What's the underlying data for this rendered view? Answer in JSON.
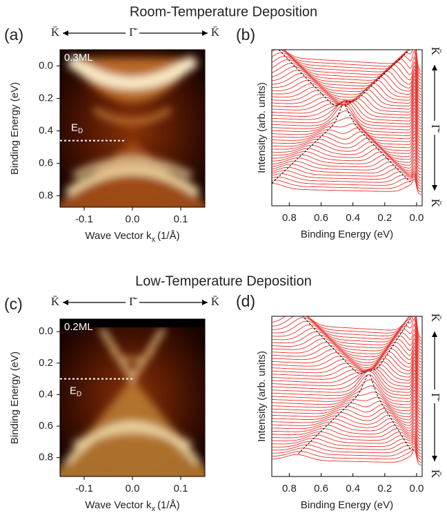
{
  "headings": [
    "Room-Temperature Deposition",
    "Low-Temperature Deposition"
  ],
  "chart_data": [
    {
      "type": "heatmap",
      "panel": "(a)",
      "annotation": "0.3ML",
      "k_path": [
        "K̄",
        "Γ̄",
        "K̄"
      ],
      "marker": {
        "label": "E",
        "label_sub": "D",
        "value": 0.46
      },
      "xlabel": "Wave Vector k",
      "xlabel_sub": "x",
      "xlabel_unit": "(1/Å)",
      "ylabel": "Binding Energy (eV)",
      "xlim": [
        -0.15,
        0.15
      ],
      "ylim": [
        -0.1,
        0.87
      ],
      "xticks": [
        -0.1,
        {
          "value": 0,
          "label": "0.0"
        },
        0.1
      ],
      "yticks": [
        {
          "value": 0,
          "label": "0.0"
        },
        0.2,
        0.4,
        0.6,
        0.8
      ]
    },
    {
      "type": "edc",
      "panel": "(b)",
      "k_path": [
        "K̄",
        "Γ̄",
        "K̄"
      ],
      "xlabel": "Binding Energy (eV)",
      "ylabel": "Intensity (arb. units)",
      "color": "#e8302a",
      "xlim": [
        0.91,
        -0.035
      ],
      "xticks": [
        0.8,
        0.6,
        0.4,
        0.2,
        {
          "value": 0,
          "label": "0.0"
        }
      ]
    },
    {
      "type": "heatmap",
      "panel": "(c)",
      "annotation": "0.2ML",
      "k_path": [
        "K̄",
        "Γ̄",
        "K̄"
      ],
      "marker": {
        "label": "E",
        "label_sub": "D",
        "value": 0.3
      },
      "xlabel": "Wave Vector k",
      "xlabel_sub": "x",
      "xlabel_unit": "(1/Å)",
      "ylabel": "Binding Energy (eV)",
      "xlim": [
        -0.15,
        0.15
      ],
      "ylim": [
        -0.08,
        0.92
      ],
      "xticks": [
        -0.1,
        {
          "value": 0,
          "label": "0.0"
        },
        0.1
      ],
      "yticks": [
        {
          "value": 0,
          "label": "0.0"
        },
        0.2,
        0.4,
        0.6,
        0.8
      ]
    },
    {
      "type": "edc",
      "panel": "(d)",
      "k_path": [
        "K̄",
        "Γ̄",
        "K̄"
      ],
      "xlabel": "Binding Energy (eV)",
      "ylabel": "Intensity (arb. units)",
      "color": "#e8302a",
      "xlim": [
        0.91,
        -0.035
      ],
      "xticks": [
        0.8,
        0.6,
        0.4,
        0.2,
        {
          "value": 0,
          "label": "0.0"
        }
      ]
    }
  ]
}
